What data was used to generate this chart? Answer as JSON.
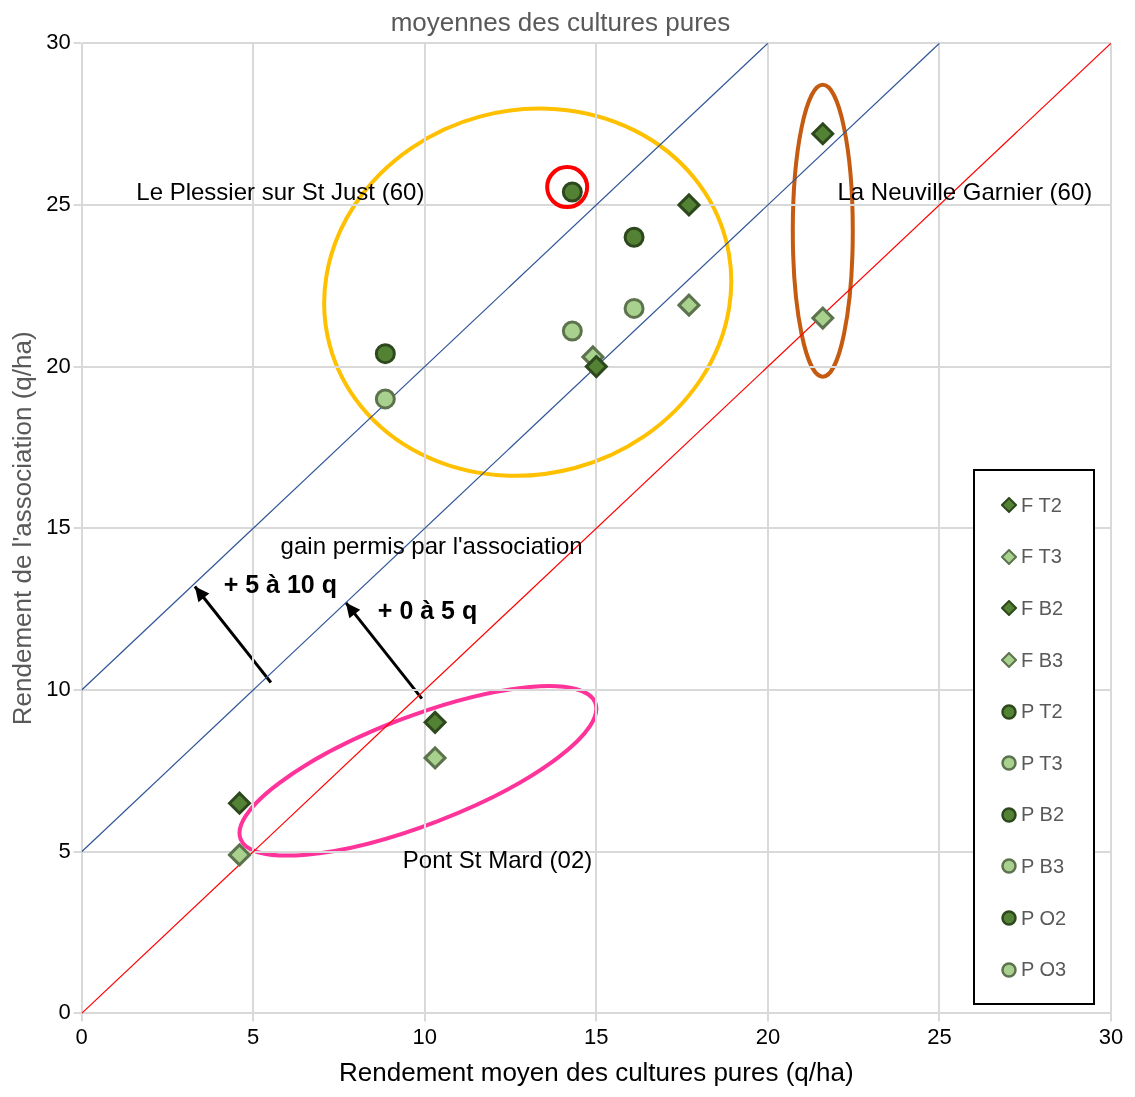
{
  "chart_data": {
    "type": "scatter",
    "title": "moyennes des cultures pures",
    "xlabel": "Rendement moyen des cultures pures (q/ha)",
    "ylabel": "Rendement de l'association (q/ha)",
    "xlim": [
      0,
      30
    ],
    "ylim": [
      0,
      30
    ],
    "xticks": [
      0,
      5,
      10,
      15,
      20,
      25,
      30
    ],
    "yticks": [
      0,
      5,
      10,
      15,
      20,
      25,
      30
    ],
    "grid": true,
    "legend": "bottom right",
    "series": [
      {
        "name": "F T2",
        "color": "#548235",
        "marker": "diamond",
        "x": [
          21.6,
          17.7,
          10.3
        ],
        "values": [
          27.2,
          25.0,
          9.0
        ]
      },
      {
        "name": "F T3",
        "color": "#a9d18e",
        "marker": "diamond",
        "x": [
          17.7,
          21.6,
          10.3
        ],
        "values": [
          21.9,
          21.5,
          7.9
        ]
      },
      {
        "name": "F B2",
        "color": "#548235",
        "marker": "diamond",
        "x": [
          15.0,
          4.6
        ],
        "values": [
          20.0,
          6.5
        ]
      },
      {
        "name": "F B3",
        "color": "#a9d18e",
        "marker": "diamond",
        "x": [
          14.9,
          4.6
        ],
        "values": [
          20.3,
          4.9
        ]
      },
      {
        "name": "P T2",
        "color": "#548235",
        "marker": "circle",
        "x": [
          14.3
        ],
        "values": [
          25.4
        ]
      },
      {
        "name": "P T3",
        "color": "#a9d18e",
        "marker": "circle",
        "x": [
          14.3
        ],
        "values": [
          21.1
        ]
      },
      {
        "name": "P B2",
        "color": "#548235",
        "marker": "circle",
        "x": [
          8.85
        ],
        "values": [
          20.4
        ]
      },
      {
        "name": "P B3",
        "color": "#a9d18e",
        "marker": "circle",
        "x": [
          8.85
        ],
        "values": [
          19.0
        ]
      },
      {
        "name": "P O2",
        "color": "#548235",
        "marker": "circle",
        "x": [
          16.1
        ],
        "values": [
          24.0
        ]
      },
      {
        "name": "P O3",
        "color": "#a9d18e",
        "marker": "circle",
        "x": [
          16.1
        ],
        "values": [
          21.8
        ]
      },
      {
        "color": "#ff0000",
        "marker": "circle",
        "x": [
          14.15
        ],
        "values": [
          25.55
        ]
      },
      {
        "type": "line",
        "color": "#ff0000",
        "marker": "none",
        "x": [
          0,
          30
        ],
        "values": [
          0,
          30
        ]
      },
      {
        "type": "line",
        "color": "#2f5597",
        "marker": "none",
        "x": [
          0,
          25
        ],
        "values": [
          5,
          30
        ]
      },
      {
        "type": "line",
        "color": "#2f5597",
        "marker": "none",
        "x": [
          0,
          20
        ],
        "values": [
          10,
          30
        ]
      }
    ],
    "annotations": [
      "Le Plessier sur St Just (60)",
      "La Neuville Garnier (60)",
      "Pont St Mard (02)",
      "gain permis par l'association",
      {
        "text": "+ 5 à 10 q",
        "x": 3.3,
        "y": 13.2
      },
      {
        "text": "+ 0 à 5 q",
        "x": 7.7,
        "y": 12.7
      }
    ]
  }
}
